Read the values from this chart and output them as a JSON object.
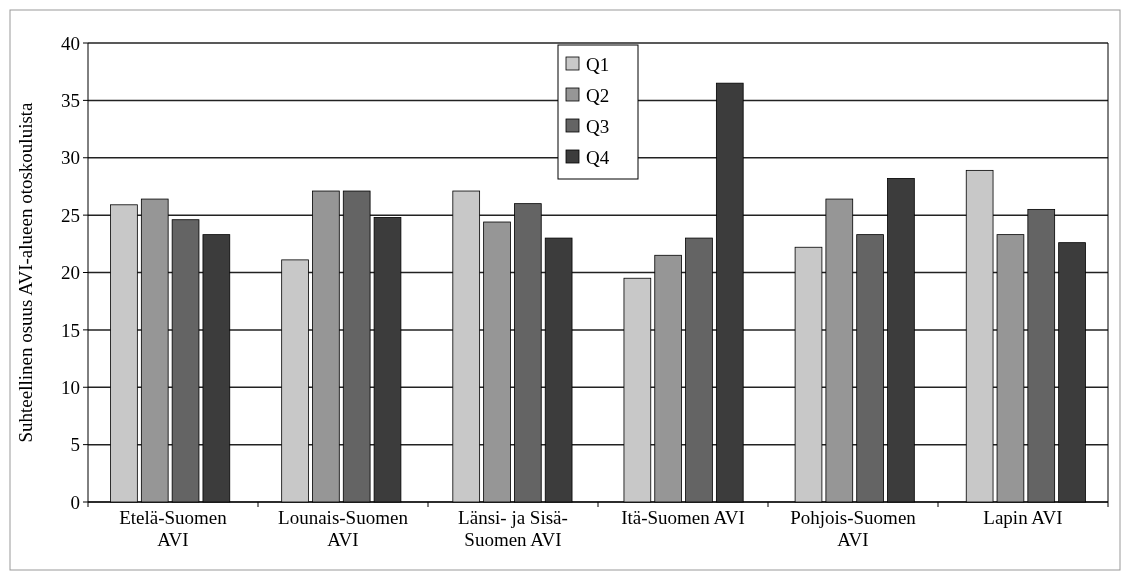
{
  "chart_data": {
    "type": "bar",
    "ylabel": "Suhteellinen osuus AVI-alueen otoskouluista",
    "categories": [
      "Etelä-Suomen AVI",
      "Lounais-Suomen AVI",
      "Länsi- ja Sisä-Suomen AVI",
      "Itä-Suomen AVI",
      "Pohjois-Suomen AVI",
      "Lapin AVI"
    ],
    "series": [
      {
        "name": "Q1",
        "color": "#c8c8c8",
        "values": [
          25.9,
          21.1,
          27.1,
          19.5,
          22.2,
          28.9
        ]
      },
      {
        "name": "Q2",
        "color": "#969696",
        "values": [
          26.4,
          27.1,
          24.4,
          21.5,
          26.4,
          23.3
        ]
      },
      {
        "name": "Q3",
        "color": "#646464",
        "values": [
          24.6,
          27.1,
          26.0,
          23.0,
          23.3,
          25.5
        ]
      },
      {
        "name": "Q4",
        "color": "#3c3c3c",
        "values": [
          23.3,
          24.8,
          23.0,
          36.5,
          28.2,
          22.6
        ]
      }
    ],
    "ylim": [
      0,
      40
    ],
    "yticks": [
      0,
      5,
      10,
      15,
      20,
      25,
      30,
      35,
      40
    ],
    "grid": "y",
    "legend": "top"
  }
}
